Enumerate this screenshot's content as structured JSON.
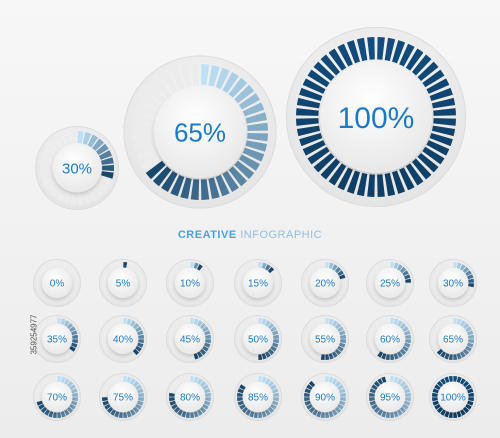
{
  "caption": {
    "strong": "CREATIVE",
    "rest": " INFOGRAPHIC"
  },
  "side_label": "359254977",
  "colors": {
    "dark": "#0f3f66",
    "mid": "#1f78c8",
    "light": "#bfe1f7",
    "text": "#1a7ac9"
  },
  "featured": [
    {
      "label": "30%",
      "value": 30
    },
    {
      "label": "65%",
      "value": 65
    },
    {
      "label": "100%",
      "value": 100
    }
  ],
  "grid": [
    {
      "label": "0%",
      "value": 0
    },
    {
      "label": "5%",
      "value": 5
    },
    {
      "label": "10%",
      "value": 10
    },
    {
      "label": "15%",
      "value": 15
    },
    {
      "label": "20%",
      "value": 20
    },
    {
      "label": "25%",
      "value": 25
    },
    {
      "label": "30%",
      "value": 30
    },
    {
      "label": "35%",
      "value": 35
    },
    {
      "label": "40%",
      "value": 40
    },
    {
      "label": "45%",
      "value": 45
    },
    {
      "label": "50%",
      "value": 50
    },
    {
      "label": "55%",
      "value": 55
    },
    {
      "label": "60%",
      "value": 60
    },
    {
      "label": "65%",
      "value": 65
    },
    {
      "label": "70%",
      "value": 70
    },
    {
      "label": "75%",
      "value": 75
    },
    {
      "label": "80%",
      "value": 80
    },
    {
      "label": "85%",
      "value": 85
    },
    {
      "label": "90%",
      "value": 90
    },
    {
      "label": "95%",
      "value": 95
    },
    {
      "label": "100%",
      "value": 100
    }
  ]
}
